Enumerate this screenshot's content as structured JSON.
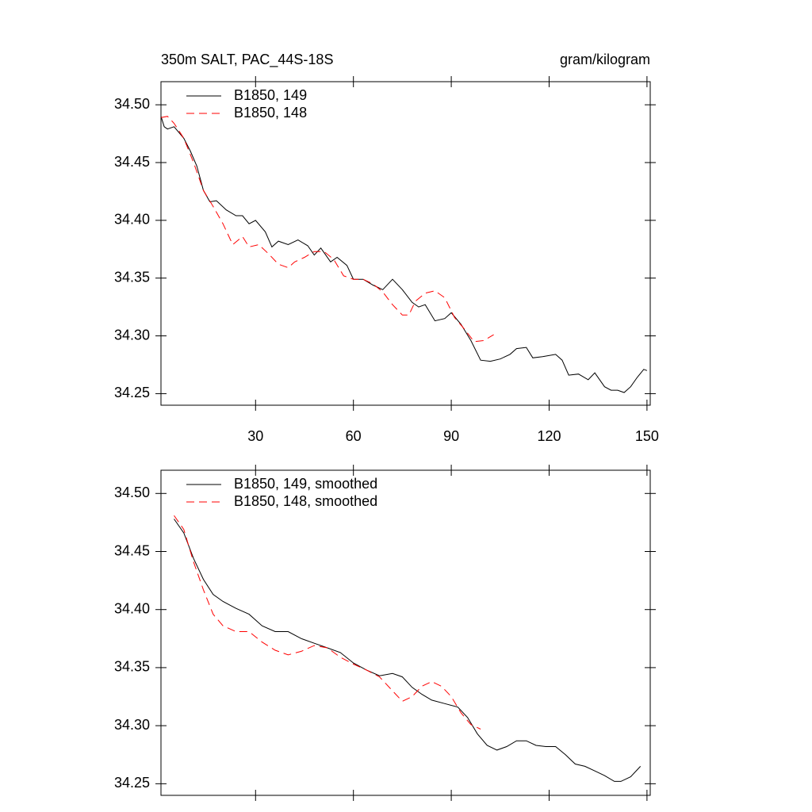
{
  "chart_data": [
    {
      "type": "line",
      "title": "350m SALT, PAC_44S-18S",
      "units_label": "gram/kilogram",
      "xlim": [
        1,
        151
      ],
      "xticks": [
        30,
        60,
        90,
        120,
        150
      ],
      "ylim": [
        34.24,
        34.52
      ],
      "yticks": [
        {
          "value": 34.5,
          "label": "34.50"
        },
        34.45,
        {
          "value": 34.4,
          "label": "34.40"
        },
        34.35,
        {
          "value": 34.3,
          "label": "34.30"
        },
        34.25
      ],
      "series": [
        {
          "name": "B1850, 149",
          "color": "#000000",
          "line_style": "solid",
          "x": [
            1,
            2,
            3,
            5,
            8,
            10,
            12,
            14,
            16,
            18,
            21,
            24,
            26,
            28,
            30,
            33,
            35,
            37,
            40,
            43,
            46,
            48,
            50,
            53,
            55,
            58,
            60,
            63,
            66,
            69,
            72,
            75,
            78,
            80,
            82,
            85,
            88,
            90,
            93,
            96,
            99,
            102,
            105,
            108,
            110,
            113,
            115,
            118,
            122,
            124,
            126,
            129,
            132,
            134,
            137,
            139,
            141,
            143,
            145,
            147,
            149,
            150
          ],
          "values": [
            34.49,
            34.481,
            34.479,
            34.481,
            34.471,
            34.46,
            34.447,
            34.426,
            34.416,
            34.417,
            34.409,
            34.404,
            34.404,
            34.397,
            34.4,
            34.39,
            34.377,
            34.382,
            34.379,
            34.383,
            34.378,
            34.37,
            34.376,
            34.364,
            34.368,
            34.361,
            34.349,
            34.349,
            34.344,
            34.34,
            34.349,
            34.34,
            34.329,
            34.325,
            34.327,
            34.313,
            34.315,
            34.32,
            34.31,
            34.296,
            34.279,
            34.278,
            34.28,
            34.284,
            34.289,
            34.29,
            34.281,
            34.282,
            34.284,
            34.279,
            34.266,
            34.267,
            34.262,
            34.268,
            34.256,
            34.253,
            34.253,
            34.251,
            34.256,
            34.264,
            34.271,
            34.27
          ]
        },
        {
          "name": "B1850, 148",
          "color": "#ff0000",
          "line_style": "dashed",
          "x": [
            1,
            3,
            5,
            8,
            11,
            14,
            17,
            20,
            23,
            26,
            28,
            31,
            34,
            37,
            40,
            42,
            45,
            48,
            51,
            54,
            57,
            60,
            63,
            66,
            69,
            72,
            75,
            77,
            79,
            82,
            85,
            88,
            91,
            94,
            97,
            100,
            103
          ],
          "values": [
            34.489,
            34.49,
            34.484,
            34.471,
            34.45,
            34.426,
            34.412,
            34.397,
            34.379,
            34.386,
            34.377,
            34.379,
            34.371,
            34.362,
            34.359,
            34.364,
            34.368,
            34.373,
            34.373,
            34.366,
            34.352,
            34.349,
            34.349,
            34.345,
            34.338,
            34.327,
            34.318,
            34.318,
            34.33,
            34.337,
            34.339,
            34.333,
            34.316,
            34.306,
            34.295,
            34.296,
            34.301
          ]
        }
      ]
    },
    {
      "type": "line",
      "xlim": [
        1,
        151
      ],
      "xticks": [
        30,
        60,
        90,
        120,
        150
      ],
      "ylim": [
        34.24,
        34.52
      ],
      "yticks": [
        {
          "value": 34.5,
          "label": "34.50"
        },
        34.45,
        {
          "value": 34.4,
          "label": "34.40"
        },
        34.35,
        {
          "value": 34.3,
          "label": "34.30"
        },
        34.25
      ],
      "series": [
        {
          "name": "B1850, 149, smoothed",
          "color": "#000000",
          "line_style": "solid",
          "x": [
            5,
            8,
            11,
            14,
            17,
            20,
            24,
            28,
            32,
            36,
            40,
            44,
            48,
            52,
            56,
            60,
            64,
            68,
            72,
            75,
            78,
            81,
            84,
            88,
            92,
            95,
            98,
            101,
            104,
            107,
            110,
            113,
            116,
            119,
            122,
            125,
            128,
            131,
            134,
            137,
            140,
            142,
            145,
            148
          ],
          "values": [
            34.478,
            34.466,
            34.444,
            34.426,
            34.413,
            34.407,
            34.401,
            34.396,
            34.386,
            34.381,
            34.381,
            34.375,
            34.371,
            34.367,
            34.363,
            34.354,
            34.348,
            34.343,
            34.345,
            34.342,
            34.333,
            34.327,
            34.322,
            34.319,
            34.316,
            34.307,
            34.293,
            34.283,
            34.279,
            34.282,
            34.287,
            34.287,
            34.283,
            34.282,
            34.282,
            34.275,
            34.267,
            34.265,
            34.261,
            34.257,
            34.252,
            34.252,
            34.256,
            34.265
          ]
        },
        {
          "name": "B1850, 148, smoothed",
          "color": "#ff0000",
          "line_style": "dashed",
          "x": [
            5,
            8,
            11,
            14,
            17,
            20,
            24,
            28,
            32,
            36,
            40,
            44,
            48,
            52,
            56,
            60,
            64,
            68,
            72,
            75,
            78,
            81,
            84,
            87,
            90,
            93,
            96,
            99
          ],
          "values": [
            34.481,
            34.469,
            34.441,
            34.417,
            34.396,
            34.386,
            34.381,
            34.381,
            34.372,
            34.365,
            34.361,
            34.364,
            34.369,
            34.367,
            34.359,
            34.353,
            34.348,
            34.342,
            34.33,
            34.321,
            34.325,
            34.334,
            34.338,
            34.334,
            34.325,
            34.311,
            34.301,
            34.297
          ]
        }
      ]
    }
  ]
}
